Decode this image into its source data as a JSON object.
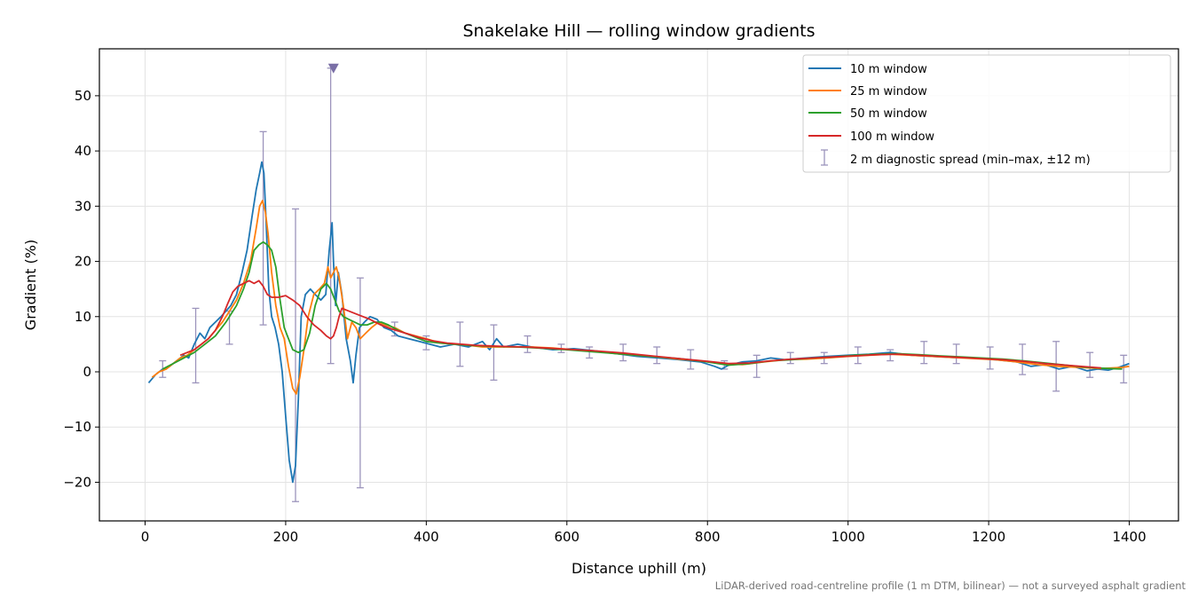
{
  "chart_data": {
    "type": "line",
    "title": "Snakelake Hill — rolling window gradients",
    "xlabel": "Distance uphill (m)",
    "ylabel": "Gradient (%)",
    "xlim": [
      -65,
      1470
    ],
    "ylim": [
      -27,
      58.5
    ],
    "x_ticks": [
      0,
      200,
      400,
      600,
      800,
      1000,
      1200,
      1400
    ],
    "y_ticks": [
      -20,
      -10,
      0,
      10,
      20,
      30,
      40,
      50
    ],
    "x_tick_labels": [
      "0",
      "200",
      "400",
      "600",
      "800",
      "1000",
      "1200",
      "1400"
    ],
    "y_tick_labels": [
      "−20",
      "−10",
      "0",
      "10",
      "20",
      "30",
      "40",
      "50"
    ],
    "grid": true,
    "legend_position": "top-right",
    "note": "LiDAR-derived road-centreline profile (1 m DTM, bilinear) — not a surveyed asphalt gradient",
    "series": [
      {
        "name": "10 m window",
        "color": "#1f77b4",
        "x": [
          5,
          15,
          25,
          35,
          45,
          55,
          62,
          70,
          78,
          85,
          92,
          100,
          108,
          115,
          122,
          130,
          138,
          145,
          152,
          158,
          163,
          166,
          169,
          172,
          176,
          180,
          185,
          190,
          195,
          200,
          205,
          210,
          214,
          218,
          222,
          228,
          235,
          242,
          250,
          257,
          262,
          266,
          268,
          271,
          275,
          280,
          286,
          292,
          296,
          300,
          305,
          312,
          320,
          330,
          340,
          350,
          360,
          375,
          390,
          405,
          420,
          440,
          460,
          480,
          490,
          500,
          510,
          530,
          550,
          580,
          610,
          640,
          670,
          700,
          730,
          760,
          790,
          810,
          820,
          830,
          850,
          870,
          890,
          910,
          940,
          970,
          1000,
          1030,
          1060,
          1090,
          1120,
          1150,
          1180,
          1210,
          1240,
          1260,
          1280,
          1300,
          1320,
          1340,
          1355,
          1370,
          1385,
          1400
        ],
        "y": [
          -2,
          -0.5,
          0.5,
          1,
          2,
          3,
          2.5,
          5,
          7,
          6,
          8,
          9,
          10,
          11,
          12,
          14,
          18,
          22,
          28,
          33,
          36,
          38,
          36,
          28,
          15,
          10,
          8,
          5,
          0,
          -8,
          -16,
          -20,
          -17,
          -5,
          10,
          14,
          15,
          14,
          13,
          14,
          22,
          27,
          20,
          12,
          18,
          14,
          6,
          2,
          -2,
          3,
          8,
          9,
          10,
          9.5,
          8,
          7.5,
          6.5,
          6,
          5.5,
          5,
          4.5,
          5,
          4.5,
          5.5,
          4,
          6,
          4.5,
          5,
          4.5,
          4,
          4.2,
          3.8,
          3.3,
          2.8,
          2.5,
          2.2,
          1.8,
          1,
          0.5,
          1.2,
          1.8,
          2,
          2.5,
          2.2,
          2.5,
          2.8,
          3,
          3.2,
          3.5,
          3,
          2.8,
          2.6,
          2.5,
          2.2,
          1.8,
          1,
          1.3,
          0.5,
          1,
          0.2,
          0.5,
          0.3,
          0.8,
          1.5
        ]
      },
      {
        "name": "25 m window",
        "color": "#ff7f0e",
        "x": [
          10,
          20,
          30,
          40,
          50,
          60,
          70,
          80,
          90,
          100,
          110,
          120,
          130,
          140,
          150,
          158,
          163,
          167,
          171,
          175,
          180,
          186,
          192,
          198,
          204,
          210,
          215,
          220,
          226,
          232,
          240,
          248,
          255,
          260,
          264,
          268,
          272,
          276,
          282,
          288,
          294,
          300,
          306,
          314,
          322,
          332,
          342,
          355,
          370,
          385,
          400,
          420,
          440,
          460,
          480,
          500,
          520,
          550,
          580,
          610,
          640,
          670,
          700,
          730,
          760,
          790,
          820,
          850,
          880,
          910,
          940,
          970,
          1000,
          1030,
          1060,
          1090,
          1120,
          1150,
          1180,
          1210,
          1240,
          1270,
          1300,
          1330,
          1360,
          1390,
          1400
        ],
        "y": [
          -1,
          0,
          0.5,
          1.5,
          2.5,
          3,
          4,
          5,
          6,
          7.5,
          9,
          11,
          13,
          16,
          20,
          26,
          30,
          31,
          29,
          25,
          18,
          12,
          8,
          6,
          1,
          -3,
          -4,
          -1,
          4,
          10,
          14,
          15,
          16,
          19,
          17,
          18,
          19,
          17,
          12,
          6,
          9,
          8,
          6,
          7,
          8,
          9,
          8.5,
          8,
          7,
          6.5,
          6,
          5.2,
          5,
          4.8,
          4.5,
          4.5,
          4.5,
          4.5,
          4.3,
          4,
          3.7,
          3.3,
          3,
          2.7,
          2.3,
          2,
          1.5,
          1.3,
          1.8,
          2.2,
          2.3,
          2.5,
          2.8,
          3,
          3.2,
          3,
          2.8,
          2.6,
          2.4,
          2.2,
          1.8,
          1.3,
          1,
          0.8,
          0.6,
          0.8,
          1
        ]
      },
      {
        "name": "50 m window",
        "color": "#2ca02c",
        "x": [
          25,
          40,
          55,
          70,
          85,
          100,
          115,
          130,
          140,
          148,
          155,
          162,
          168,
          174,
          180,
          186,
          192,
          198,
          204,
          210,
          218,
          226,
          234,
          242,
          250,
          258,
          264,
          270,
          276,
          282,
          290,
          298,
          306,
          316,
          326,
          336,
          346,
          360,
          380,
          400,
          420,
          440,
          460,
          480,
          500,
          530,
          560,
          600,
          640,
          680,
          720,
          760,
          800,
          830,
          860,
          890,
          920,
          950,
          980,
          1010,
          1040,
          1070,
          1100,
          1130,
          1160,
          1190,
          1220,
          1250,
          1280,
          1310,
          1340,
          1370,
          1390
        ],
        "y": [
          0.5,
          1.5,
          2.5,
          3.5,
          5,
          6.5,
          9,
          12,
          15,
          18,
          22,
          23,
          23.5,
          23,
          22,
          19,
          13,
          8,
          6,
          4,
          3.5,
          4,
          7,
          12,
          15,
          16,
          15,
          13,
          11,
          10,
          9.5,
          9,
          8.5,
          8.5,
          9,
          9,
          8.5,
          7.5,
          6.5,
          5.5,
          5.2,
          5,
          4.8,
          4.7,
          4.6,
          4.5,
          4.3,
          4,
          3.6,
          3.2,
          2.8,
          2.4,
          1.8,
          1.2,
          1.5,
          2,
          2.2,
          2.5,
          2.7,
          3,
          3.2,
          3.3,
          3.1,
          2.9,
          2.7,
          2.5,
          2.3,
          2,
          1.6,
          1.2,
          0.8,
          0.6,
          0.5
        ]
      },
      {
        "name": "100 m window",
        "color": "#d62728",
        "x": [
          50,
          60,
          70,
          80,
          90,
          100,
          110,
          118,
          125,
          132,
          140,
          148,
          155,
          162,
          168,
          174,
          180,
          190,
          200,
          210,
          220,
          230,
          240,
          250,
          258,
          264,
          268,
          272,
          276,
          280,
          290,
          300,
          310,
          320,
          335,
          350,
          370,
          390,
          410,
          430,
          450,
          470,
          490,
          510,
          540,
          570,
          600,
          640,
          680,
          720,
          760,
          800,
          830,
          860,
          890,
          920,
          950,
          980,
          1010,
          1040,
          1070,
          1100,
          1130,
          1160,
          1190,
          1220,
          1250,
          1280,
          1310,
          1340,
          1360
        ],
        "y": [
          3,
          3.5,
          4,
          5,
          6,
          7.5,
          10,
          12.5,
          14.5,
          15.5,
          16,
          16.5,
          16,
          16.5,
          15.5,
          14,
          13.5,
          13.5,
          13.8,
          13,
          12,
          10,
          8.5,
          7.5,
          6.5,
          6,
          6.5,
          8,
          10,
          11.5,
          11,
          10.5,
          10,
          9.5,
          8.5,
          7.8,
          7,
          6.2,
          5.6,
          5.2,
          5,
          4.8,
          4.7,
          4.6,
          4.5,
          4.3,
          4.1,
          3.8,
          3.4,
          2.9,
          2.4,
          1.9,
          1.5,
          1.6,
          2,
          2.3,
          2.5,
          2.7,
          2.9,
          3.1,
          3.2,
          3,
          2.8,
          2.6,
          2.4,
          2.2,
          1.9,
          1.5,
          1.2,
          0.9,
          0.7
        ]
      }
    ],
    "errorbars": {
      "name": "2 m diagnostic spread (min–max, ±12 m)",
      "color": "#9c94bc",
      "x": [
        25,
        72,
        120,
        168,
        214,
        264,
        306,
        355,
        400,
        448,
        496,
        544,
        592,
        632,
        680,
        728,
        776,
        824,
        870,
        918,
        966,
        1014,
        1060,
        1108,
        1154,
        1202,
        1248,
        1296,
        1344,
        1392
      ],
      "low": [
        -1,
        -2,
        5,
        8.5,
        -23.5,
        1.5,
        -21,
        6.5,
        4,
        1,
        -1.5,
        3.5,
        3.5,
        2.5,
        2,
        1.5,
        0.5,
        0.5,
        -1,
        1.5,
        1.5,
        1.5,
        2,
        1.5,
        1.5,
        0.5,
        -0.5,
        -3.5,
        -1,
        -2
      ],
      "high": [
        2,
        11.5,
        11,
        43.5,
        29.5,
        55,
        17,
        9,
        6.5,
        9,
        8.5,
        6.5,
        5,
        4.5,
        5,
        4.5,
        4,
        2,
        3,
        3.5,
        3.5,
        4.5,
        4,
        5.5,
        5,
        4.5,
        5,
        5.5,
        3.5,
        3
      ]
    },
    "clipped_marker": {
      "x": 268,
      "y": 55,
      "color": "#7a6fa6"
    }
  }
}
